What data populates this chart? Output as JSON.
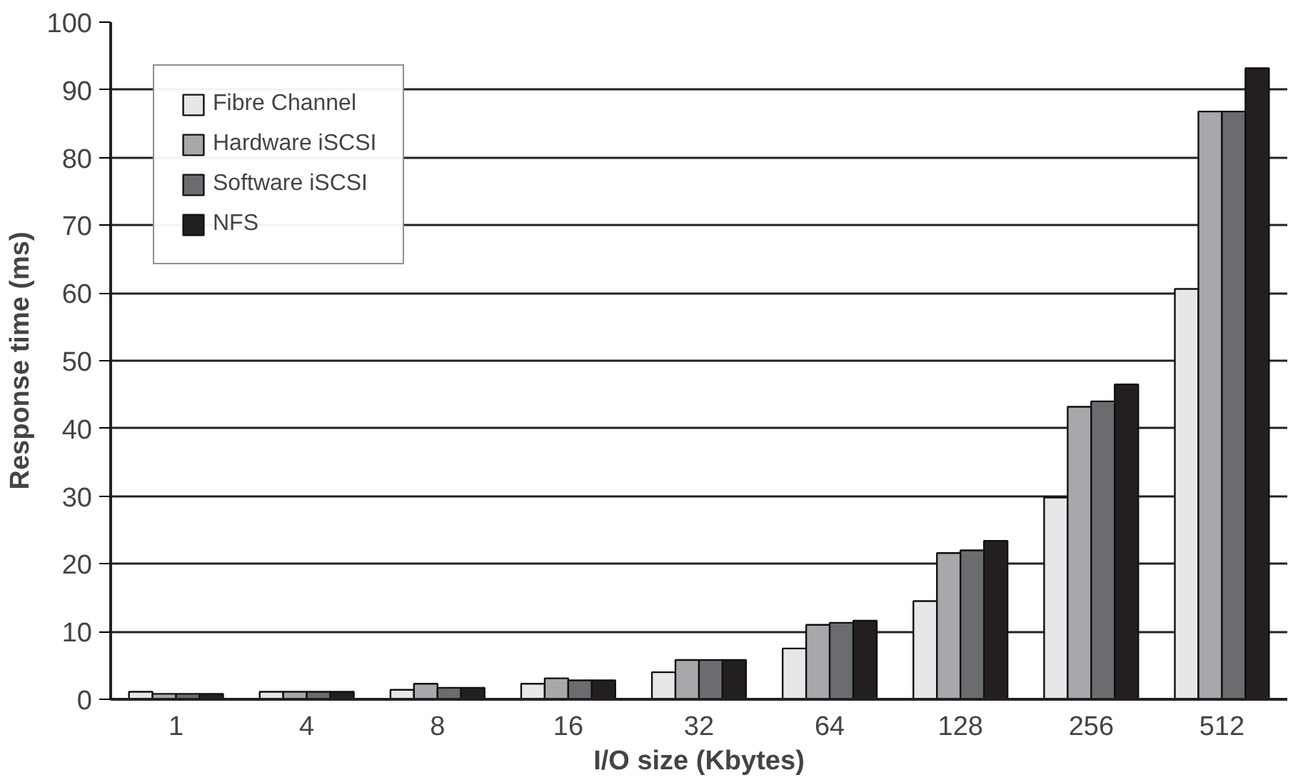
{
  "chart_data": {
    "type": "bar",
    "xlabel": "I/O size (Kbytes)",
    "ylabel": "Response time (ms)",
    "categories": [
      "1",
      "4",
      "8",
      "16",
      "32",
      "64",
      "128",
      "256",
      "512"
    ],
    "series": [
      {
        "name": "Fibre Channel",
        "color": "#e6e7e9",
        "values": [
          1.1,
          1.1,
          1.4,
          2.3,
          4.0,
          7.5,
          14.5,
          29.8,
          60.6
        ]
      },
      {
        "name": "Hardware iSCSI",
        "color": "#a7a8ac",
        "values": [
          0.8,
          1.1,
          2.3,
          3.1,
          5.8,
          11.0,
          21.6,
          43.2,
          86.8
        ]
      },
      {
        "name": "Software iSCSI",
        "color": "#6b6c70",
        "values": [
          0.8,
          1.1,
          1.7,
          2.8,
          5.8,
          11.3,
          22.0,
          44.0,
          86.8
        ]
      },
      {
        "name": "NFS",
        "color": "#231f20",
        "values": [
          0.8,
          1.1,
          1.7,
          2.8,
          5.8,
          11.6,
          23.4,
          46.5,
          93.2
        ]
      }
    ],
    "ylim": [
      0,
      100
    ],
    "yticks": [
      0,
      10,
      20,
      30,
      40,
      50,
      60,
      70,
      80,
      90,
      100
    ],
    "grid": "y",
    "legend": "top left"
  }
}
